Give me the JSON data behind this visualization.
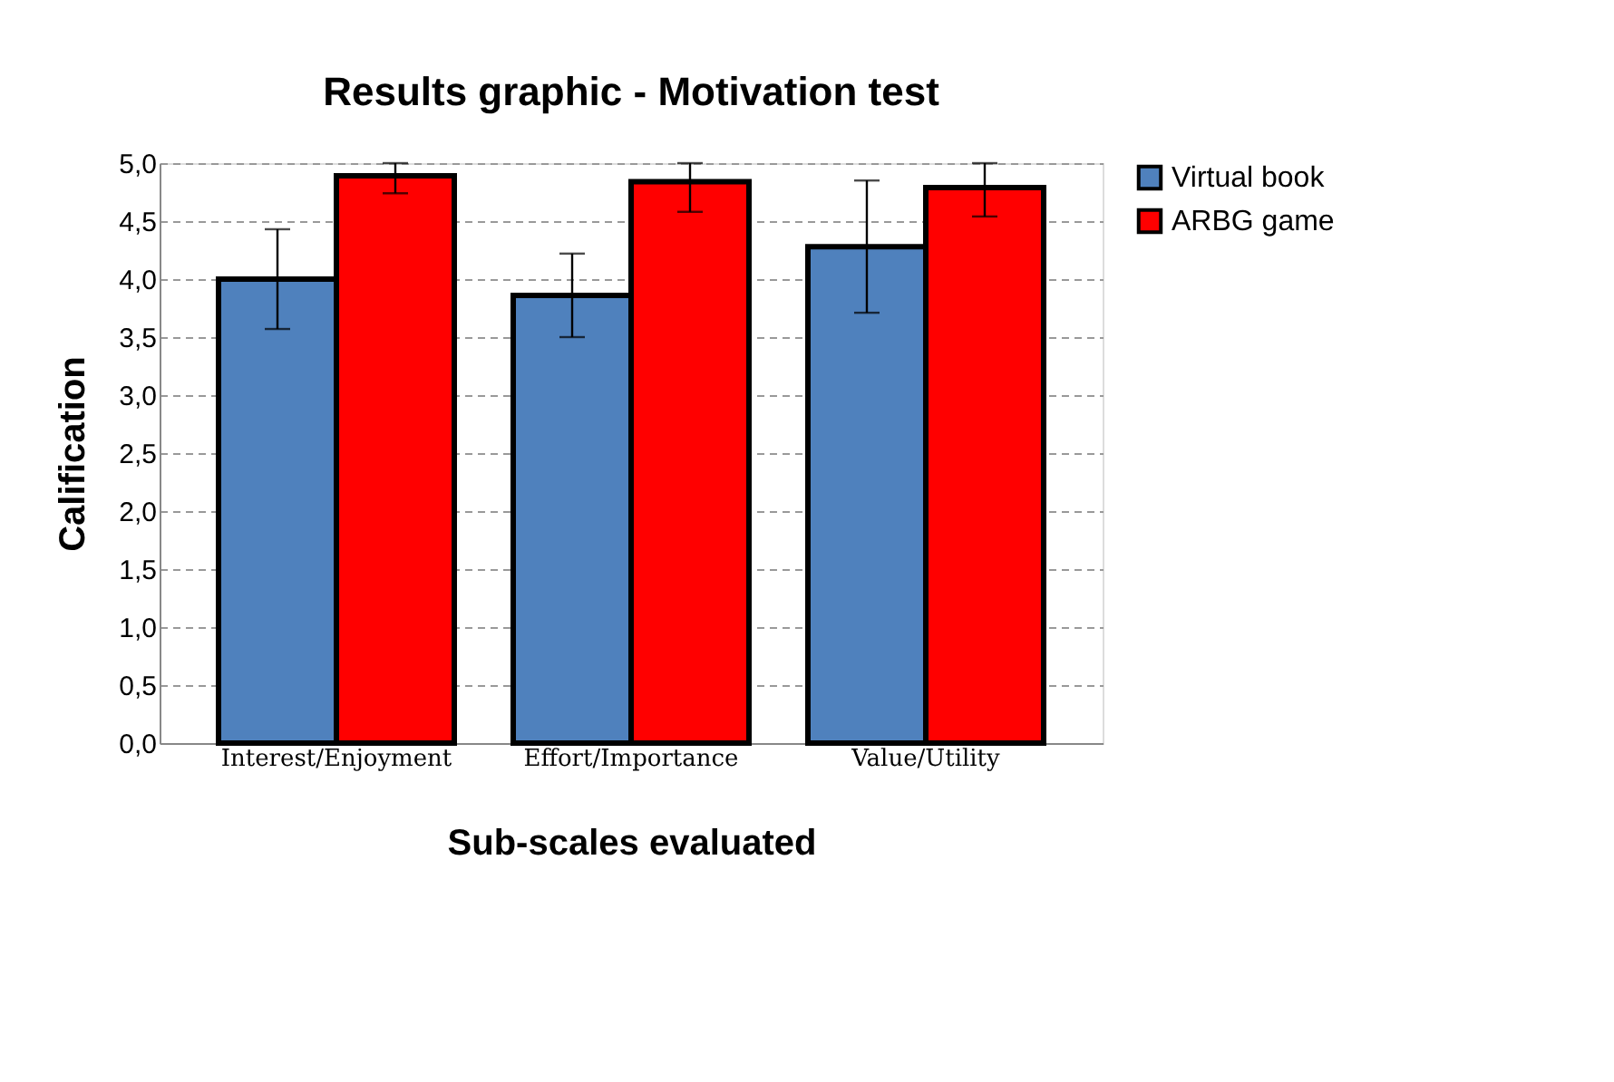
{
  "chart_data": {
    "type": "bar",
    "title": "Results graphic - Motivation test",
    "xlabel": "Sub-scales evaluated",
    "ylabel": "Calification",
    "categories": [
      "Interest/Enjoyment",
      "Effort/Importance",
      "Value/Utility"
    ],
    "series": [
      {
        "name": "Virtual book",
        "color": "#4f81bd",
        "values": [
          4.0,
          3.86,
          4.28
        ],
        "errors": [
          0.43,
          0.36,
          0.57
        ]
      },
      {
        "name": "ARBG game",
        "color": "#ff0000",
        "values": [
          4.89,
          4.84,
          4.79
        ],
        "errors": [
          [
            4.74,
            5.0
          ],
          [
            4.58,
            5.0
          ],
          [
            4.54,
            5.0
          ]
        ]
      }
    ],
    "ylim": [
      0,
      5
    ],
    "yticks": [
      {
        "value": 0,
        "label": "0,0"
      },
      {
        "value": 0.5,
        "label": "0,5"
      },
      {
        "value": 1,
        "label": "1,0"
      },
      {
        "value": 1.5,
        "label": "1,5"
      },
      {
        "value": 2,
        "label": "2,0"
      },
      {
        "value": 2.5,
        "label": "2,5"
      },
      {
        "value": 3,
        "label": "3,0"
      },
      {
        "value": 3.5,
        "label": "3,5"
      },
      {
        "value": 4,
        "label": "4,0"
      },
      {
        "value": 4.5,
        "label": "4,5"
      },
      {
        "value": 5,
        "label": "5,0"
      }
    ],
    "grid": "y",
    "legend": "right"
  }
}
